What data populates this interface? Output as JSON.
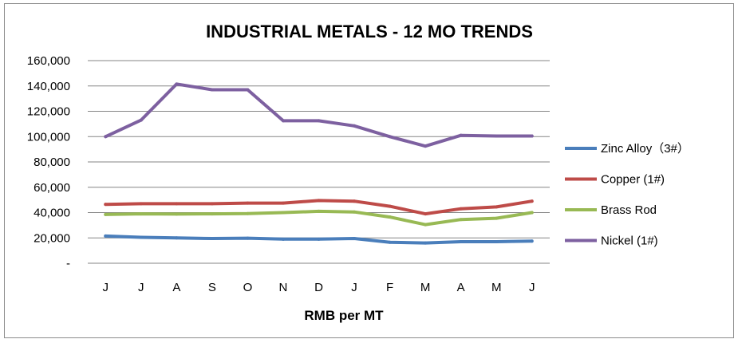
{
  "chart_data": {
    "type": "line",
    "title": "INDUSTRIAL METALS - 12 MO TRENDS",
    "xlabel": "RMB per MT",
    "ylabel": "",
    "categories": [
      "J",
      "J",
      "A",
      "S",
      "O",
      "N",
      "D",
      "J",
      "F",
      "M",
      "A",
      "M",
      "J"
    ],
    "ylim": [
      0,
      160000
    ],
    "ytick_labels": [
      "-",
      "20,000",
      "40,000",
      "60,000",
      "80,000",
      "100,000",
      "120,000",
      "140,000",
      "160,000"
    ],
    "grid": true,
    "legend_position": "right",
    "series": [
      {
        "name": "Zinc Alloy（3#）",
        "color": "#4a7ebb",
        "values": [
          21500,
          20500,
          20000,
          19500,
          19800,
          19000,
          19000,
          19500,
          16500,
          16000,
          17000,
          17000,
          17500
        ]
      },
      {
        "name": "Copper (1#)",
        "color": "#be4b48",
        "values": [
          46500,
          47000,
          47000,
          47000,
          47500,
          47500,
          49500,
          49000,
          45000,
          39000,
          43000,
          44500,
          49000
        ]
      },
      {
        "name": "Brass Rod",
        "color": "#98b954",
        "values": [
          38500,
          39000,
          38800,
          39000,
          39200,
          40000,
          41000,
          40500,
          36500,
          30500,
          34500,
          35500,
          40000
        ]
      },
      {
        "name": "Nickel (1#)",
        "color": "#7d60a0",
        "values": [
          100000,
          113000,
          141500,
          137000,
          137000,
          112500,
          112500,
          108500,
          100000,
          92500,
          101000,
          100500,
          100500
        ]
      }
    ]
  }
}
